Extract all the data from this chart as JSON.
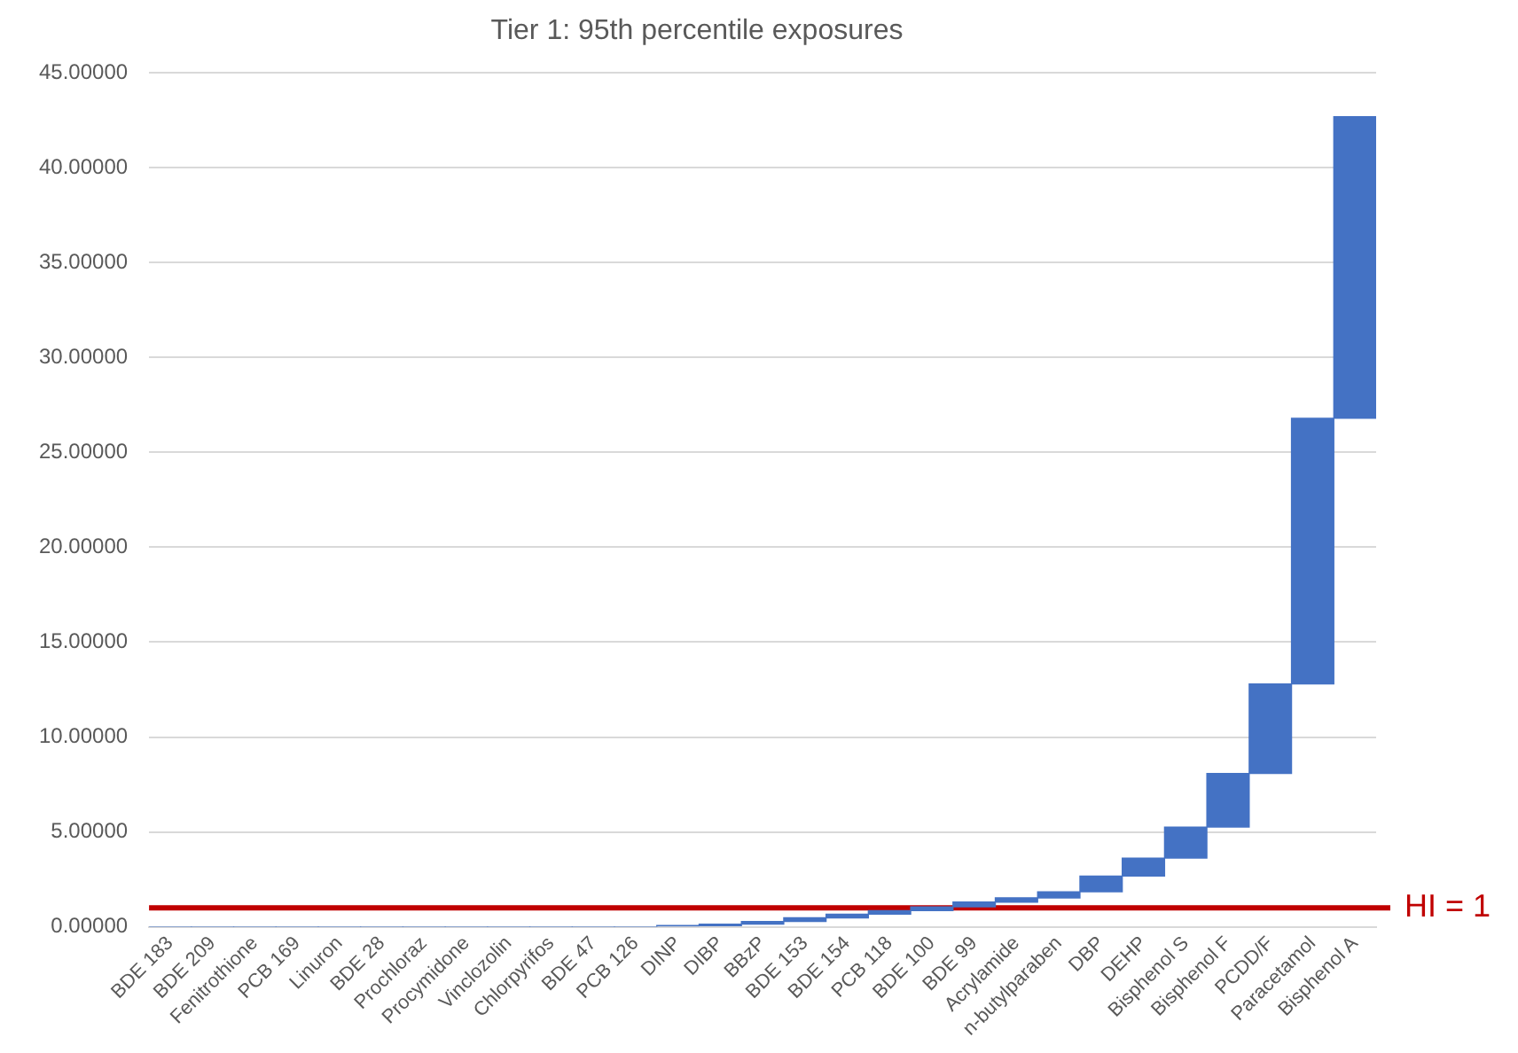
{
  "chart_data": {
    "type": "bar",
    "title": "Tier 1: 95th percentile exposures",
    "categories": [
      "BDE 183",
      "BDE 209",
      "Fenitrothione",
      "PCB 169",
      "Linuron",
      "BDE 28",
      "Prochloraz",
      "Procymidone",
      "Vinclozolin",
      "Chlorpyrifos",
      "BDE 47",
      "PCB 126",
      "DINP",
      "DIBP",
      "BBzP",
      "BDE 153",
      "BDE 154",
      "PCB 118",
      "BDE 100",
      "BDE 99",
      "Acrylamide",
      "n-butylparaben",
      "DBP",
      "DEHP",
      "Bisphenol S",
      "Bisphenol F",
      "PCDD/F",
      "Paracetamol",
      "Bisphenol A"
    ],
    "values": [
      0,
      0,
      0,
      0,
      0,
      0,
      0,
      0,
      0,
      0,
      0,
      0,
      0.06,
      0.08,
      0.14,
      0.19,
      0.19,
      0.19,
      0.2,
      0.25,
      0.22,
      0.32,
      0.83,
      0.95,
      1.63,
      2.83,
      4.72,
      14.0,
      15.9
    ],
    "base": [
      0,
      0,
      0,
      0,
      0,
      0,
      0,
      0,
      0,
      0,
      0,
      0,
      0,
      0.06,
      0.14,
      0.28,
      0.47,
      0.66,
      0.85,
      1.05,
      1.3,
      1.52,
      1.84,
      2.67,
      3.62,
      5.25,
      8.08,
      12.8,
      26.8
    ],
    "color": "#4472c4",
    "ylim": [
      0,
      45
    ],
    "yticks": [
      {
        "value": 0,
        "label": "0.00000"
      },
      {
        "value": 5,
        "label": "5.00000"
      },
      {
        "value": 10,
        "label": "10.00000"
      },
      {
        "value": 15,
        "label": "15.00000"
      },
      {
        "value": 20,
        "label": "20.00000"
      },
      {
        "value": 25,
        "label": "25.00000"
      },
      {
        "value": 30,
        "label": "30.00000"
      },
      {
        "value": 35,
        "label": "35.00000"
      },
      {
        "value": 40,
        "label": "40.00000"
      },
      {
        "value": 45,
        "label": "45.00000"
      }
    ],
    "grid": "y",
    "ref_lines": [
      {
        "axis": "y",
        "value": 1,
        "label": "HI = 1",
        "color": "#c00000"
      }
    ]
  }
}
